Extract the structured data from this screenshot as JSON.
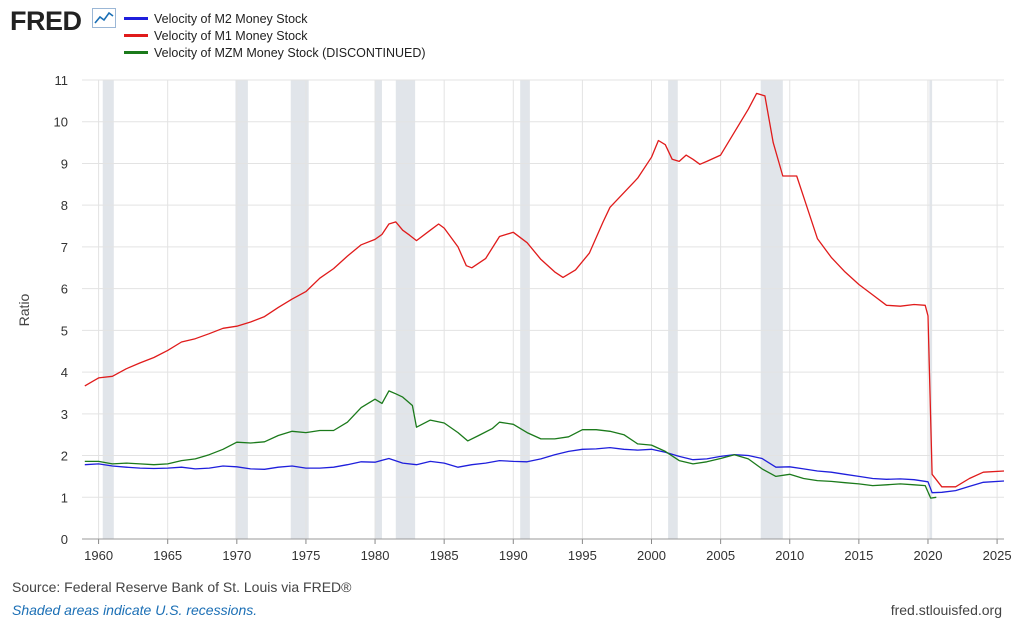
{
  "header": {
    "brand": "FRED",
    "brand_icon": "line-chart-icon"
  },
  "chart_data": {
    "type": "line",
    "ylabel": "Ratio",
    "xlim": [
      1958.8,
      2025.5
    ],
    "ylim": [
      0,
      11
    ],
    "y_ticks": [
      "0",
      "1",
      "2",
      "3",
      "4",
      "5",
      "6",
      "7",
      "8",
      "9",
      "10",
      "11"
    ],
    "x_ticks": [
      "1960",
      "1965",
      "1970",
      "1975",
      "1980",
      "1985",
      "1990",
      "1995",
      "2000",
      "2005",
      "2010",
      "2015",
      "2020",
      "2025"
    ],
    "grid": true,
    "legend_position": "top-left",
    "recessions": [
      [
        1960.3,
        1961.1
      ],
      [
        1969.9,
        1970.8
      ],
      [
        1973.9,
        1975.2
      ],
      [
        1980.0,
        1980.5
      ],
      [
        1981.5,
        1982.9
      ],
      [
        1990.5,
        1991.2
      ],
      [
        2001.2,
        2001.9
      ],
      [
        2007.9,
        2009.5
      ],
      [
        2020.1,
        2020.3
      ]
    ],
    "series": [
      {
        "name": "Velocity of M2 Money Stock",
        "color": "#1f1fdc",
        "points": [
          [
            1959.0,
            1.78
          ],
          [
            1960.0,
            1.8
          ],
          [
            1961.0,
            1.75
          ],
          [
            1962.0,
            1.72
          ],
          [
            1963.0,
            1.7
          ],
          [
            1964.0,
            1.69
          ],
          [
            1965.0,
            1.7
          ],
          [
            1966.0,
            1.72
          ],
          [
            1967.0,
            1.68
          ],
          [
            1968.0,
            1.7
          ],
          [
            1969.0,
            1.75
          ],
          [
            1970.0,
            1.73
          ],
          [
            1971.0,
            1.68
          ],
          [
            1972.0,
            1.67
          ],
          [
            1973.0,
            1.72
          ],
          [
            1974.0,
            1.75
          ],
          [
            1975.0,
            1.7
          ],
          [
            1976.0,
            1.7
          ],
          [
            1977.0,
            1.72
          ],
          [
            1978.0,
            1.78
          ],
          [
            1979.0,
            1.85
          ],
          [
            1980.0,
            1.84
          ],
          [
            1981.0,
            1.93
          ],
          [
            1982.0,
            1.82
          ],
          [
            1983.0,
            1.78
          ],
          [
            1984.0,
            1.86
          ],
          [
            1985.0,
            1.82
          ],
          [
            1986.0,
            1.72
          ],
          [
            1987.0,
            1.78
          ],
          [
            1988.0,
            1.82
          ],
          [
            1989.0,
            1.88
          ],
          [
            1990.0,
            1.86
          ],
          [
            1991.0,
            1.85
          ],
          [
            1992.0,
            1.92
          ],
          [
            1993.0,
            2.02
          ],
          [
            1994.0,
            2.1
          ],
          [
            1995.0,
            2.15
          ],
          [
            1996.0,
            2.16
          ],
          [
            1997.0,
            2.19
          ],
          [
            1998.0,
            2.15
          ],
          [
            1999.0,
            2.13
          ],
          [
            2000.0,
            2.15
          ],
          [
            2001.0,
            2.08
          ],
          [
            2002.0,
            1.98
          ],
          [
            2003.0,
            1.9
          ],
          [
            2004.0,
            1.92
          ],
          [
            2005.0,
            1.98
          ],
          [
            2006.0,
            2.02
          ],
          [
            2007.0,
            2.0
          ],
          [
            2008.0,
            1.93
          ],
          [
            2009.0,
            1.72
          ],
          [
            2010.0,
            1.73
          ],
          [
            2011.0,
            1.68
          ],
          [
            2012.0,
            1.63
          ],
          [
            2013.0,
            1.6
          ],
          [
            2014.0,
            1.55
          ],
          [
            2015.0,
            1.5
          ],
          [
            2016.0,
            1.45
          ],
          [
            2017.0,
            1.43
          ],
          [
            2018.0,
            1.44
          ],
          [
            2019.0,
            1.42
          ],
          [
            2020.0,
            1.37
          ],
          [
            2020.3,
            1.11
          ],
          [
            2021.0,
            1.12
          ],
          [
            2022.0,
            1.16
          ],
          [
            2023.0,
            1.26
          ],
          [
            2024.0,
            1.36
          ],
          [
            2025.5,
            1.39
          ]
        ]
      },
      {
        "name": "Velocity of M1 Money Stock",
        "color": "#e01b1b",
        "points": [
          [
            1959.0,
            3.67
          ],
          [
            1960.0,
            3.86
          ],
          [
            1961.0,
            3.9
          ],
          [
            1962.0,
            4.08
          ],
          [
            1963.0,
            4.22
          ],
          [
            1964.0,
            4.35
          ],
          [
            1965.0,
            4.52
          ],
          [
            1966.0,
            4.72
          ],
          [
            1967.0,
            4.8
          ],
          [
            1968.0,
            4.92
          ],
          [
            1969.0,
            5.05
          ],
          [
            1970.0,
            5.1
          ],
          [
            1971.0,
            5.2
          ],
          [
            1972.0,
            5.33
          ],
          [
            1973.0,
            5.55
          ],
          [
            1974.0,
            5.75
          ],
          [
            1975.0,
            5.93
          ],
          [
            1976.0,
            6.25
          ],
          [
            1977.0,
            6.48
          ],
          [
            1978.0,
            6.78
          ],
          [
            1979.0,
            7.05
          ],
          [
            1980.0,
            7.18
          ],
          [
            1980.5,
            7.3
          ],
          [
            1981.0,
            7.55
          ],
          [
            1981.5,
            7.6
          ],
          [
            1982.0,
            7.4
          ],
          [
            1982.5,
            7.28
          ],
          [
            1983.0,
            7.15
          ],
          [
            1984.0,
            7.4
          ],
          [
            1984.6,
            7.55
          ],
          [
            1985.0,
            7.45
          ],
          [
            1986.0,
            7.0
          ],
          [
            1986.6,
            6.55
          ],
          [
            1987.0,
            6.5
          ],
          [
            1988.0,
            6.72
          ],
          [
            1989.0,
            7.25
          ],
          [
            1990.0,
            7.35
          ],
          [
            1991.0,
            7.1
          ],
          [
            1992.0,
            6.7
          ],
          [
            1993.0,
            6.4
          ],
          [
            1993.6,
            6.27
          ],
          [
            1994.5,
            6.45
          ],
          [
            1995.5,
            6.85
          ],
          [
            1996.5,
            7.6
          ],
          [
            1997.0,
            7.95
          ],
          [
            1998.0,
            8.3
          ],
          [
            1999.0,
            8.65
          ],
          [
            2000.0,
            9.15
          ],
          [
            2000.5,
            9.55
          ],
          [
            2001.0,
            9.45
          ],
          [
            2001.5,
            9.1
          ],
          [
            2002.0,
            9.05
          ],
          [
            2002.5,
            9.2
          ],
          [
            2003.0,
            9.1
          ],
          [
            2003.5,
            8.98
          ],
          [
            2004.0,
            9.05
          ],
          [
            2005.0,
            9.2
          ],
          [
            2006.0,
            9.75
          ],
          [
            2007.0,
            10.3
          ],
          [
            2007.6,
            10.68
          ],
          [
            2008.2,
            10.62
          ],
          [
            2008.8,
            9.5
          ],
          [
            2009.5,
            8.7
          ],
          [
            2010.0,
            8.7
          ],
          [
            2010.5,
            8.7
          ],
          [
            2011.0,
            8.2
          ],
          [
            2012.0,
            7.2
          ],
          [
            2013.0,
            6.75
          ],
          [
            2014.0,
            6.4
          ],
          [
            2015.0,
            6.1
          ],
          [
            2016.0,
            5.85
          ],
          [
            2017.0,
            5.6
          ],
          [
            2018.0,
            5.58
          ],
          [
            2019.0,
            5.62
          ],
          [
            2019.8,
            5.6
          ],
          [
            2020.0,
            5.35
          ],
          [
            2020.3,
            1.55
          ],
          [
            2021.0,
            1.25
          ],
          [
            2022.0,
            1.25
          ],
          [
            2023.0,
            1.45
          ],
          [
            2024.0,
            1.6
          ],
          [
            2025.5,
            1.63
          ]
        ]
      },
      {
        "name": "Velocity of MZM Money Stock (DISCONTINUED)",
        "color": "#1b7a1b",
        "points": [
          [
            1959.0,
            1.86
          ],
          [
            1960.0,
            1.86
          ],
          [
            1961.0,
            1.8
          ],
          [
            1962.0,
            1.82
          ],
          [
            1963.0,
            1.8
          ],
          [
            1964.0,
            1.78
          ],
          [
            1965.0,
            1.8
          ],
          [
            1966.0,
            1.88
          ],
          [
            1967.0,
            1.92
          ],
          [
            1968.0,
            2.02
          ],
          [
            1969.0,
            2.15
          ],
          [
            1970.0,
            2.32
          ],
          [
            1971.0,
            2.3
          ],
          [
            1972.0,
            2.33
          ],
          [
            1973.0,
            2.48
          ],
          [
            1974.0,
            2.58
          ],
          [
            1975.0,
            2.55
          ],
          [
            1976.0,
            2.6
          ],
          [
            1977.0,
            2.6
          ],
          [
            1978.0,
            2.8
          ],
          [
            1979.0,
            3.15
          ],
          [
            1980.0,
            3.35
          ],
          [
            1980.5,
            3.25
          ],
          [
            1981.0,
            3.55
          ],
          [
            1981.5,
            3.48
          ],
          [
            1982.0,
            3.4
          ],
          [
            1982.7,
            3.2
          ],
          [
            1983.0,
            2.68
          ],
          [
            1984.0,
            2.85
          ],
          [
            1985.0,
            2.78
          ],
          [
            1986.0,
            2.55
          ],
          [
            1986.7,
            2.35
          ],
          [
            1987.5,
            2.48
          ],
          [
            1988.5,
            2.65
          ],
          [
            1989.0,
            2.8
          ],
          [
            1990.0,
            2.75
          ],
          [
            1991.0,
            2.55
          ],
          [
            1992.0,
            2.4
          ],
          [
            1993.0,
            2.4
          ],
          [
            1994.0,
            2.45
          ],
          [
            1995.0,
            2.62
          ],
          [
            1996.0,
            2.62
          ],
          [
            1997.0,
            2.58
          ],
          [
            1998.0,
            2.5
          ],
          [
            1999.0,
            2.28
          ],
          [
            2000.0,
            2.25
          ],
          [
            2001.0,
            2.1
          ],
          [
            2002.0,
            1.88
          ],
          [
            2003.0,
            1.8
          ],
          [
            2004.0,
            1.85
          ],
          [
            2005.0,
            1.93
          ],
          [
            2006.0,
            2.02
          ],
          [
            2007.0,
            1.92
          ],
          [
            2008.0,
            1.68
          ],
          [
            2009.0,
            1.5
          ],
          [
            2010.0,
            1.55
          ],
          [
            2011.0,
            1.45
          ],
          [
            2012.0,
            1.4
          ],
          [
            2013.0,
            1.38
          ],
          [
            2014.0,
            1.35
          ],
          [
            2015.0,
            1.32
          ],
          [
            2016.0,
            1.28
          ],
          [
            2017.0,
            1.3
          ],
          [
            2018.0,
            1.32
          ],
          [
            2019.0,
            1.3
          ],
          [
            2019.8,
            1.28
          ],
          [
            2020.2,
            0.98
          ],
          [
            2020.6,
            1.0
          ]
        ]
      }
    ]
  },
  "footer": {
    "source": "Source: Federal Reserve Bank of St. Louis via FRED®",
    "note": "Shaded areas indicate U.S. recessions.",
    "site": "fred.stlouisfed.org"
  }
}
